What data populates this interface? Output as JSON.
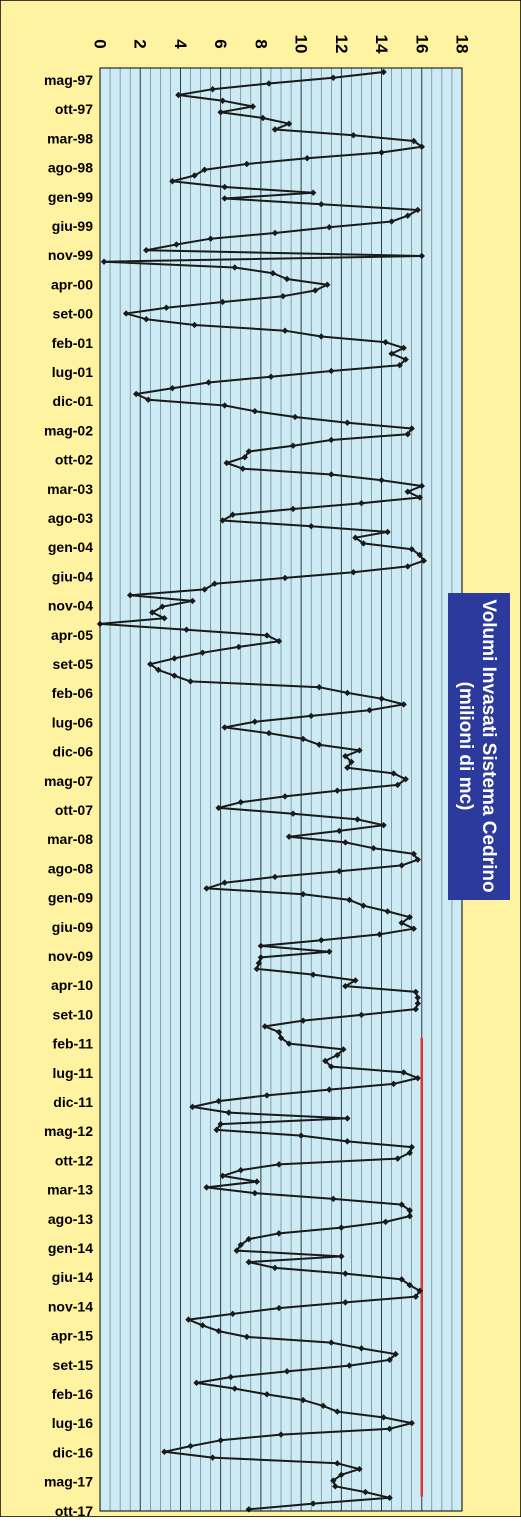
{
  "chart_data": {
    "type": "line",
    "orientation": "rotated-90",
    "title_line1": "Volumi Invasati Sistema Cedrino",
    "title_line2": "(milioni di mc)",
    "xlabel": "",
    "ylabel": "",
    "ylim": [
      0,
      18
    ],
    "y_ticks": [
      "0",
      "2",
      "4",
      "6",
      "8",
      "10",
      "12",
      "14",
      "16",
      "18"
    ],
    "category_labels": [
      "mag-97",
      "ott-97",
      "mar-98",
      "ago-98",
      "gen-99",
      "giu-99",
      "nov-99",
      "apr-00",
      "set-00",
      "feb-01",
      "lug-01",
      "dic-01",
      "mag-02",
      "ott-02",
      "mar-03",
      "ago-03",
      "gen-04",
      "giu-04",
      "nov-04",
      "apr-05",
      "set-05",
      "feb-06",
      "lug-06",
      "dic-06",
      "mag-07",
      "ott-07",
      "mar-08",
      "ago-08",
      "gen-09",
      "giu-09",
      "nov-09",
      "apr-10",
      "set-10",
      "feb-11",
      "lug-11",
      "dic-11",
      "mag-12",
      "ott-12",
      "mar-13",
      "ago-13",
      "gen-14",
      "giu-14",
      "nov-14",
      "apr-15",
      "set-15",
      "feb-16",
      "lug-16",
      "dic-16",
      "mag-17",
      "ott-17"
    ],
    "grid": true,
    "colors": {
      "page": "#FFF2A0",
      "plot_area": "#CDEBF5",
      "gridline": "#000000",
      "series": "#1A1A1A",
      "title_box": "#2B3A9C",
      "title_text": "#FFFFFF",
      "reference_line": "#E0342E"
    },
    "reference_line": {
      "value": 16,
      "from": "feb-11",
      "to": "mag-17"
    },
    "series": [
      {
        "name": "",
        "values": [
          14.1,
          11.6,
          8.4,
          5.6,
          3.9,
          6.1,
          7.6,
          6.0,
          8.1,
          9.4,
          8.7,
          12.6,
          15.6,
          16.0,
          14.0,
          10.3,
          7.3,
          5.2,
          4.7,
          3.6,
          6.2,
          10.6,
          6.2,
          11.0,
          15.8,
          15.3,
          14.5,
          11.4,
          8.7,
          5.5,
          3.8,
          2.3,
          16.0,
          0.2,
          6.7,
          8.6,
          9.3,
          11.3,
          10.7,
          9.1,
          6.1,
          3.3,
          1.3,
          2.3,
          4.7,
          9.2,
          11.0,
          14.2,
          15.1,
          14.5,
          15.2,
          14.9,
          11.5,
          8.5,
          5.4,
          3.6,
          1.8,
          2.4,
          6.2,
          7.7,
          9.7,
          12.3,
          15.5,
          15.3,
          11.5,
          9.6,
          7.4,
          7.2,
          6.3,
          7.1,
          11.5,
          14.0,
          16.0,
          15.3,
          15.9,
          13.0,
          9.6,
          6.6,
          6.1,
          10.5,
          14.3,
          12.7,
          13.1,
          15.5,
          15.9,
          16.1,
          15.3,
          12.6,
          9.2,
          5.7,
          5.2,
          1.5,
          4.6,
          3.1,
          2.6,
          3.2,
          0.0,
          4.3,
          8.3,
          8.9,
          6.9,
          5.1,
          3.7,
          2.5,
          2.9,
          3.7,
          4.5,
          10.9,
          12.3,
          14.0,
          15.1,
          13.4,
          10.5,
          7.7,
          6.2,
          8.4,
          10.1,
          10.9,
          12.9,
          12.2,
          12.5,
          12.3,
          14.6,
          15.2,
          14.8,
          11.8,
          9.2,
          7.0,
          5.9,
          9.6,
          12.8,
          14.1,
          11.9,
          9.4,
          12.2,
          13.6,
          15.6,
          15.8,
          15.0,
          11.9,
          8.7,
          6.2,
          5.3,
          10.1,
          12.4,
          13.1,
          14.3,
          15.4,
          15.0,
          15.6,
          13.9,
          11.0,
          8.0,
          11.4,
          8.0,
          7.9,
          7.8,
          10.6,
          12.7,
          12.2,
          15.7,
          15.8,
          15.8,
          15.7,
          13.0,
          10.1,
          8.2,
          8.9,
          9.0,
          9.4,
          12.1,
          11.8,
          11.2,
          11.5,
          15.1,
          15.8,
          14.6,
          11.4,
          8.3,
          5.9,
          4.6,
          6.4,
          12.3,
          6.0,
          5.8,
          10.0,
          12.3,
          15.5,
          15.4,
          14.8,
          8.9,
          7.0,
          6.1,
          7.8,
          5.3,
          7.7,
          11.6,
          15.0,
          15.4,
          15.4,
          14.2,
          12.0,
          8.9,
          7.4,
          7.0,
          6.8,
          12.0,
          7.4,
          8.7,
          12.2,
          15.0,
          15.4,
          15.9,
          15.7,
          12.2,
          8.9,
          6.6,
          4.4,
          5.1,
          5.9,
          7.3,
          11.5,
          13.0,
          14.7,
          14.4,
          12.4,
          9.3,
          6.5,
          4.8,
          6.7,
          8.3,
          10.1,
          11.1,
          11.8,
          14.1,
          15.5,
          14.4,
          9.0,
          6.0,
          4.5,
          3.2,
          5.6,
          11.8,
          12.9,
          12.0,
          11.6,
          11.7,
          13.2,
          14.4,
          10.6,
          7.4
        ]
      }
    ]
  }
}
